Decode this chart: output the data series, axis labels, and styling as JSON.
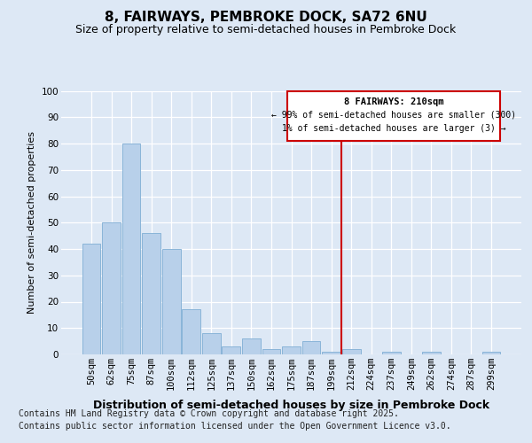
{
  "title1": "8, FAIRWAYS, PEMBROKE DOCK, SA72 6NU",
  "title2": "Size of property relative to semi-detached houses in Pembroke Dock",
  "xlabel": "Distribution of semi-detached houses by size in Pembroke Dock",
  "ylabel": "Number of semi-detached properties",
  "categories": [
    "50sqm",
    "62sqm",
    "75sqm",
    "87sqm",
    "100sqm",
    "112sqm",
    "125sqm",
    "137sqm",
    "150sqm",
    "162sqm",
    "175sqm",
    "187sqm",
    "199sqm",
    "212sqm",
    "224sqm",
    "237sqm",
    "249sqm",
    "262sqm",
    "274sqm",
    "287sqm",
    "299sqm"
  ],
  "values": [
    42,
    50,
    80,
    46,
    40,
    17,
    8,
    3,
    6,
    2,
    3,
    5,
    1,
    2,
    0,
    1,
    0,
    1,
    0,
    0,
    1
  ],
  "bar_color": "#b8d0ea",
  "bar_edge_color": "#8ab4d8",
  "vline_x_index": 13,
  "vline_color": "#cc0000",
  "annotation_title": "8 FAIRWAYS: 210sqm",
  "annotation_line1": "← 99% of semi-detached houses are smaller (300)",
  "annotation_line2": "1% of semi-detached houses are larger (3) →",
  "annotation_box_color": "#cc0000",
  "ylim": [
    0,
    100
  ],
  "yticks": [
    0,
    10,
    20,
    30,
    40,
    50,
    60,
    70,
    80,
    90,
    100
  ],
  "footer1": "Contains HM Land Registry data © Crown copyright and database right 2025.",
  "footer2": "Contains public sector information licensed under the Open Government Licence v3.0.",
  "bg_color": "#dde8f5",
  "plot_bg_color": "#dde8f5",
  "title1_fontsize": 11,
  "title2_fontsize": 9,
  "ylabel_fontsize": 8,
  "xlabel_fontsize": 9,
  "tick_fontsize": 7.5,
  "footer_fontsize": 7
}
